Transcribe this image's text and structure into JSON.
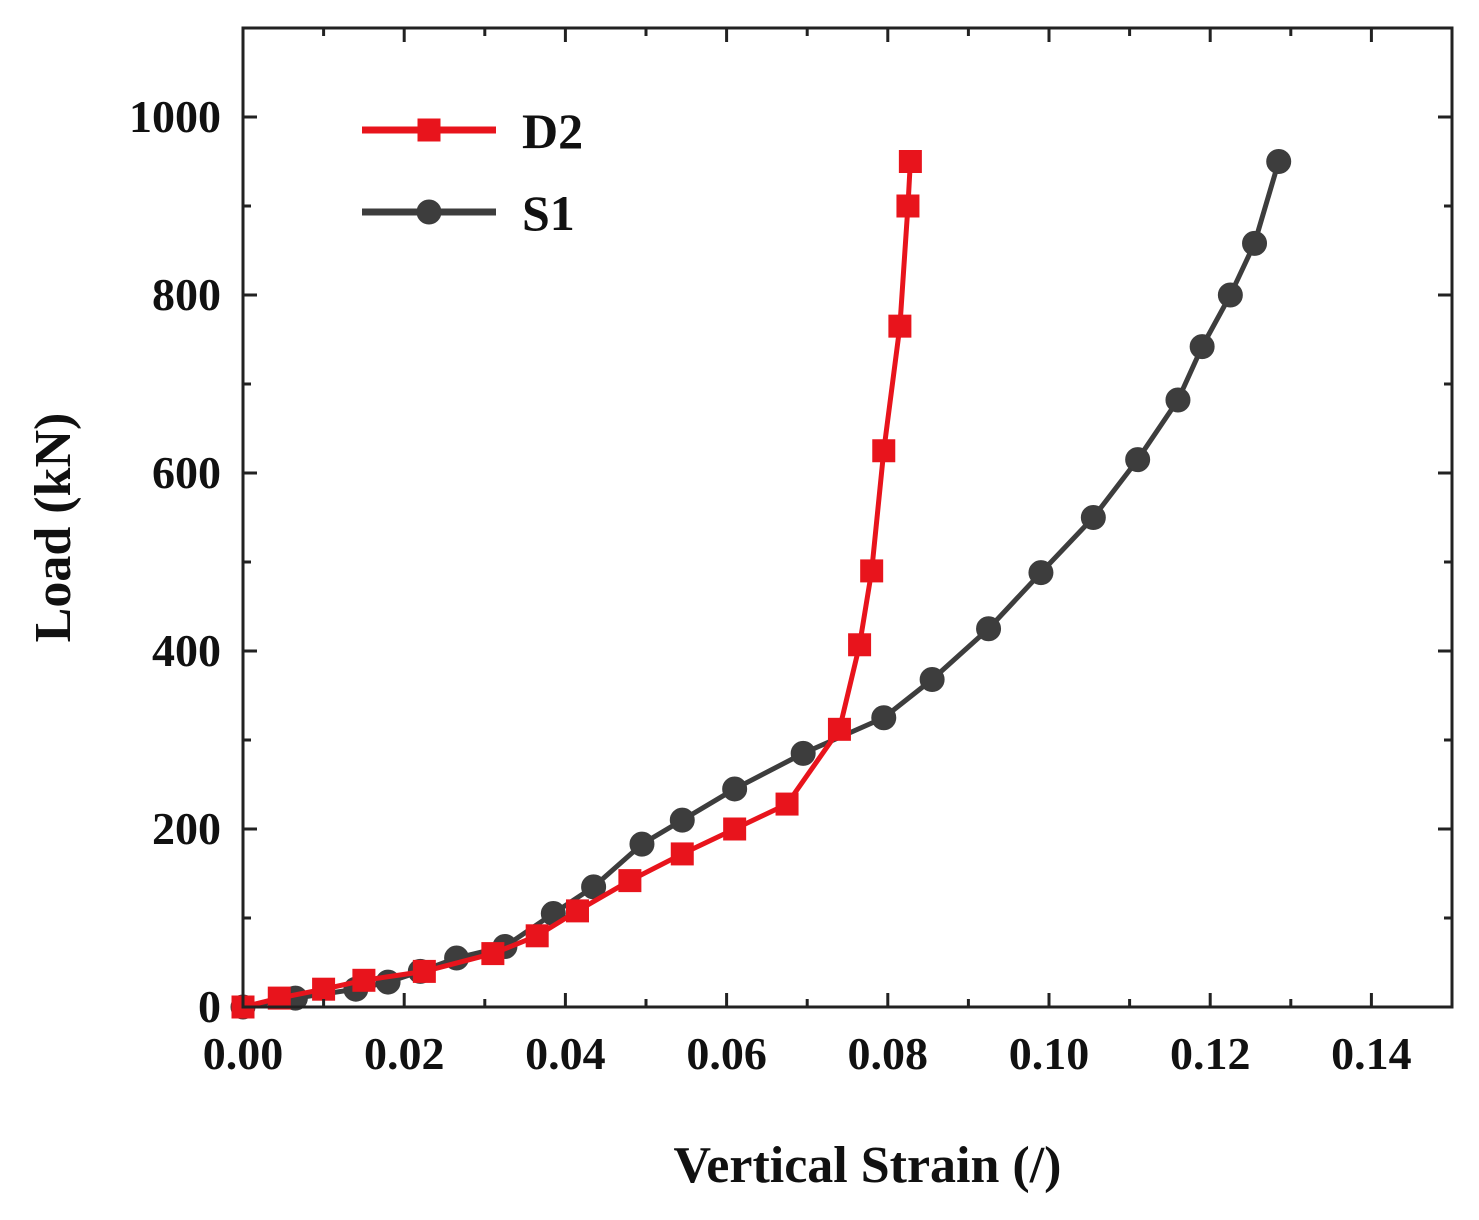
{
  "chart_data": {
    "type": "line",
    "title": "",
    "xlabel": "Vertical Strain (/)",
    "ylabel": "Load (kN)",
    "xlim": [
      0.0,
      0.15
    ],
    "ylim": [
      0,
      1100
    ],
    "x_ticks": [
      0.0,
      0.02,
      0.04,
      0.06,
      0.08,
      0.1,
      0.12,
      0.14
    ],
    "x_tick_labels": [
      "0.00",
      "0.02",
      "0.04",
      "0.06",
      "0.08",
      "0.10",
      "0.12",
      "0.14"
    ],
    "y_ticks": [
      0,
      200,
      400,
      600,
      800,
      1000
    ],
    "y_tick_labels": [
      "0",
      "200",
      "400",
      "600",
      "800",
      "1000"
    ],
    "grid": false,
    "legend_position": "top-left",
    "series": [
      {
        "name": "D2",
        "color": "#e8141c",
        "marker": "square",
        "x": [
          0.0,
          0.0045,
          0.01,
          0.015,
          0.0225,
          0.031,
          0.0365,
          0.0415,
          0.048,
          0.0545,
          0.061,
          0.0675,
          0.074,
          0.0765,
          0.078,
          0.0795,
          0.0815,
          0.0825,
          0.0828
        ],
        "y": [
          0,
          10,
          20,
          30,
          40,
          60,
          80,
          108,
          142,
          172,
          200,
          228,
          312,
          407,
          490,
          625,
          765,
          900,
          950
        ]
      },
      {
        "name": "S1",
        "color": "#3d3d3d",
        "marker": "circle",
        "x": [
          0.0,
          0.0065,
          0.014,
          0.018,
          0.022,
          0.0265,
          0.0325,
          0.0385,
          0.0435,
          0.0495,
          0.0545,
          0.061,
          0.0695,
          0.0795,
          0.0855,
          0.0925,
          0.099,
          0.1055,
          0.111,
          0.116,
          0.119,
          0.1225,
          0.1255,
          0.1285
        ],
        "y": [
          0,
          10,
          20,
          28,
          40,
          55,
          68,
          105,
          135,
          183,
          210,
          245,
          285,
          325,
          368,
          425,
          488,
          550,
          615,
          682,
          742,
          800,
          858,
          950
        ]
      }
    ]
  }
}
